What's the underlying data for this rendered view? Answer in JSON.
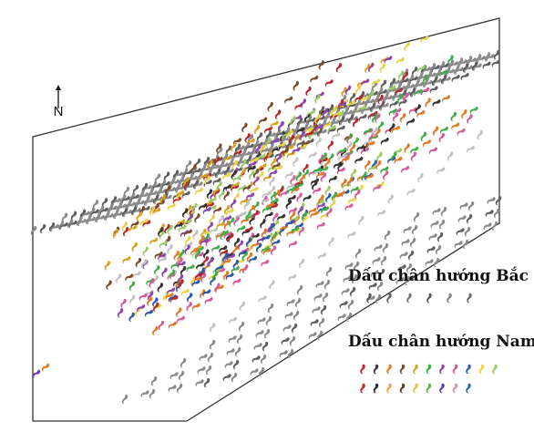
{
  "north_arrow": {
    "label": "N"
  },
  "legend": {
    "north": {
      "title": "Dấu chân hướng Bắc",
      "colors": [
        "#555555",
        "#666666",
        "#777777",
        "#5a5a5a",
        "#808080",
        "#6a6a6a"
      ]
    },
    "south": {
      "title": "Dấu chân hướng Nam",
      "row1_colors": [
        "#b5282c",
        "#3a3a3a",
        "#e07b25",
        "#7a4b2a",
        "#d9a020",
        "#3fae49",
        "#8e44ad",
        "#d55a9c",
        "#2d5aa8",
        "#e7d34a",
        "#9ccc65"
      ],
      "row2_colors": [
        "#c62828",
        "#2b2b2b",
        "#f0a040",
        "#6d3b1f",
        "#e5c04b",
        "#6ab04c",
        "#5e35b1",
        "#e88aa8",
        "#1f6fb2"
      ]
    }
  },
  "trackway_colors": [
    "#888888",
    "#555555",
    "#b5282c",
    "#e07b25",
    "#d9a020",
    "#3fae49",
    "#8e44ad",
    "#d55a9c",
    "#2d5aa8",
    "#7a4b2a",
    "#333333",
    "#9ccc65",
    "#e7d34a",
    "#c2c2c2"
  ]
}
